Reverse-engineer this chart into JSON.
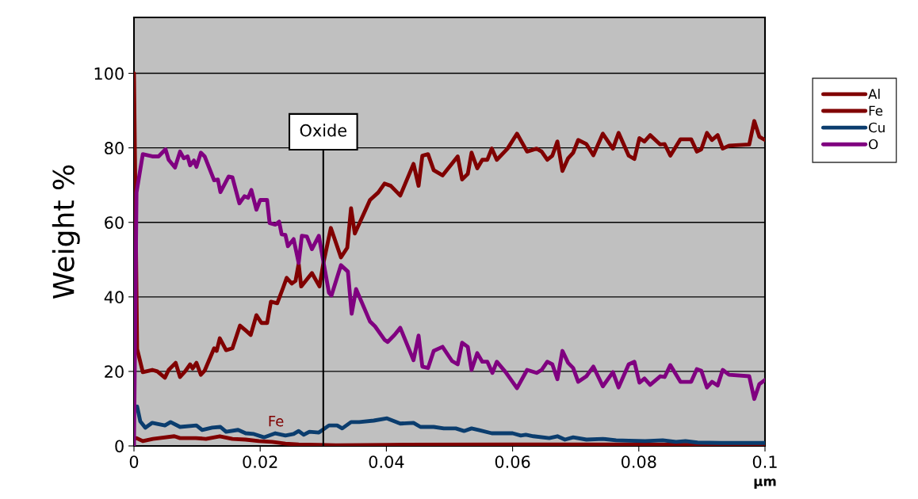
{
  "chart_data": {
    "type": "line",
    "ylabel": "Weight %",
    "xlabel": "µm",
    "xlim": [
      0,
      0.1
    ],
    "xticks": [
      0,
      0.02,
      0.04,
      0.06,
      0.08,
      0.1
    ],
    "ylim": [
      0,
      115
    ],
    "yticks": [
      0,
      20,
      40,
      60,
      80,
      100
    ],
    "grid": "y",
    "legend": "right",
    "marker": "none",
    "line_style": "solid",
    "ref_lines": [
      {
        "axis": "x",
        "value": 0.03,
        "label": "Oxide",
        "color": "#000000"
      }
    ],
    "annotations": [
      "Fe"
    ],
    "series": [
      {
        "name": "Al",
        "color": "#800000",
        "x": [
          0,
          0.0005,
          0.0014,
          0.0029,
          0.0037,
          0.0049,
          0.0055,
          0.0066,
          0.0073,
          0.0081,
          0.0089,
          0.0093,
          0.0099,
          0.0106,
          0.0112,
          0.0127,
          0.0131,
          0.0136,
          0.0146,
          0.0156,
          0.0168,
          0.0177,
          0.0185,
          0.0194,
          0.0202,
          0.0211,
          0.0217,
          0.0227,
          0.0236,
          0.0242,
          0.025,
          0.0256,
          0.0261,
          0.0265,
          0.0282,
          0.0294,
          0.03,
          0.0312,
          0.0328,
          0.0338,
          0.0344,
          0.035,
          0.0374,
          0.0387,
          0.0397,
          0.0407,
          0.0422,
          0.0443,
          0.0451,
          0.0457,
          0.0466,
          0.0475,
          0.0489,
          0.0513,
          0.052,
          0.0529,
          0.0535,
          0.0544,
          0.0552,
          0.056,
          0.0567,
          0.0575,
          0.0592,
          0.0607,
          0.0623,
          0.0638,
          0.0646,
          0.0655,
          0.0663,
          0.0671,
          0.0679,
          0.0688,
          0.0696,
          0.0704,
          0.0717,
          0.0728,
          0.0743,
          0.0759,
          0.0768,
          0.0784,
          0.0793,
          0.0801,
          0.0809,
          0.0818,
          0.0834,
          0.0841,
          0.085,
          0.0866,
          0.0883,
          0.0892,
          0.0899,
          0.0908,
          0.0916,
          0.0925,
          0.0933,
          0.0943,
          0.0975,
          0.0983,
          0.0991,
          0.1
        ],
        "values": [
          100,
          26,
          19.8,
          20.4,
          20,
          18.3,
          20.4,
          22.3,
          18.5,
          20,
          21.9,
          20.8,
          22.3,
          19.1,
          20.2,
          26.2,
          25.5,
          28.9,
          25.7,
          26.2,
          32.3,
          31,
          29.8,
          35.1,
          33,
          33,
          38.7,
          38.3,
          42.3,
          45.1,
          43.6,
          44.3,
          48.9,
          42.8,
          46.4,
          42.8,
          48.9,
          58.5,
          50.6,
          53.2,
          63.8,
          57,
          66,
          68,
          70.4,
          69.8,
          67.2,
          75.7,
          69.8,
          77.9,
          78.3,
          74,
          72.6,
          77.7,
          71.5,
          73,
          78.7,
          74.5,
          76.8,
          76.8,
          79.8,
          76.8,
          79.8,
          83.8,
          79,
          79.8,
          79,
          76.8,
          77.9,
          81.7,
          73.8,
          77.2,
          78.7,
          82.1,
          81,
          78,
          83.8,
          79.8,
          84,
          77.9,
          77,
          82.6,
          81.7,
          83.4,
          80.9,
          81,
          77.9,
          82.3,
          82.3,
          79,
          79.6,
          84,
          82.1,
          83.4,
          79.8,
          80.6,
          80.9,
          87.2,
          83,
          82.1
        ]
      },
      {
        "name": "Fe",
        "color": "#800000",
        "x": [
          0,
          0.0004,
          0.0014,
          0.003,
          0.0064,
          0.0073,
          0.0098,
          0.0114,
          0.0136,
          0.0156,
          0.0177,
          0.0198,
          0.0219,
          0.024,
          0.0261,
          0.0294,
          0.032,
          0.04,
          0.06,
          0.08,
          0.1
        ],
        "values": [
          2,
          2.1,
          1.3,
          1.9,
          2.6,
          2.1,
          2.1,
          1.9,
          2.6,
          1.9,
          1.7,
          1.3,
          1.1,
          0.6,
          0.4,
          0.3,
          0.2,
          0.3,
          0.4,
          0.4,
          0.2
        ]
      },
      {
        "name": "Cu",
        "color": "#0b3d6e",
        "x": [
          0.0005,
          0.001,
          0.0018,
          0.0029,
          0.0049,
          0.0058,
          0.0073,
          0.0099,
          0.0108,
          0.0124,
          0.0137,
          0.0146,
          0.0165,
          0.0177,
          0.019,
          0.0206,
          0.0224,
          0.024,
          0.0253,
          0.0261,
          0.0269,
          0.0278,
          0.0293,
          0.0309,
          0.0322,
          0.033,
          0.0344,
          0.0357,
          0.038,
          0.0401,
          0.0422,
          0.0443,
          0.0454,
          0.0475,
          0.0491,
          0.051,
          0.0523,
          0.0535,
          0.0546,
          0.0567,
          0.06,
          0.0613,
          0.0621,
          0.0633,
          0.0658,
          0.0671,
          0.0683,
          0.0696,
          0.0717,
          0.0743,
          0.0764,
          0.0784,
          0.081,
          0.0838,
          0.0859,
          0.0874,
          0.0893,
          0.093,
          0.095,
          0.1
        ],
        "values": [
          10.6,
          6.6,
          4.9,
          6.2,
          5.5,
          6.4,
          5.1,
          5.5,
          4.3,
          4.9,
          5.1,
          3.8,
          4.3,
          3.4,
          3.2,
          2.3,
          3.4,
          2.8,
          3.2,
          4,
          3,
          3.8,
          3.6,
          5.5,
          5.5,
          4.7,
          6.4,
          6.4,
          6.8,
          7.4,
          6,
          6.2,
          5.1,
          5.1,
          4.7,
          4.7,
          4,
          4.7,
          4.3,
          3.4,
          3.4,
          2.8,
          3,
          2.6,
          2.1,
          2.6,
          1.7,
          2.3,
          1.7,
          1.9,
          1.5,
          1.4,
          1.3,
          1.5,
          1.1,
          1.3,
          0.9,
          0.8,
          0.8,
          0.8
        ]
      },
      {
        "name": "O",
        "color": "#800080",
        "x": [
          0,
          0.0004,
          0.0014,
          0.0029,
          0.0039,
          0.005,
          0.0055,
          0.0065,
          0.0073,
          0.0079,
          0.0085,
          0.0089,
          0.0095,
          0.0099,
          0.0106,
          0.0112,
          0.0127,
          0.0133,
          0.0137,
          0.015,
          0.0156,
          0.0167,
          0.0175,
          0.0181,
          0.0186,
          0.0194,
          0.02,
          0.0211,
          0.0215,
          0.0224,
          0.023,
          0.0234,
          0.024,
          0.0244,
          0.0253,
          0.0261,
          0.0266,
          0.0274,
          0.0282,
          0.0293,
          0.0299,
          0.0309,
          0.0313,
          0.0328,
          0.0339,
          0.0345,
          0.0352,
          0.0374,
          0.0382,
          0.0397,
          0.0402,
          0.0413,
          0.0422,
          0.0443,
          0.0451,
          0.0457,
          0.0466,
          0.0475,
          0.0489,
          0.0504,
          0.0513,
          0.052,
          0.0529,
          0.0535,
          0.0544,
          0.0552,
          0.056,
          0.0568,
          0.0575,
          0.0589,
          0.0607,
          0.0623,
          0.0638,
          0.0646,
          0.0655,
          0.0663,
          0.0671,
          0.0679,
          0.0688,
          0.0696,
          0.0704,
          0.0717,
          0.0728,
          0.0743,
          0.0759,
          0.0768,
          0.0784,
          0.0793,
          0.0801,
          0.0809,
          0.0818,
          0.0834,
          0.0841,
          0.085,
          0.0866,
          0.0883,
          0.0892,
          0.0899,
          0.0908,
          0.0916,
          0.0925,
          0.0933,
          0.0943,
          0.0975,
          0.0983,
          0.0991,
          0.1
        ],
        "values": [
          0,
          68,
          78.3,
          77.7,
          77.7,
          79.6,
          76.8,
          74.7,
          79,
          77.2,
          77.7,
          75.3,
          76.6,
          74.9,
          78.7,
          77.7,
          71.3,
          71.5,
          68.1,
          72.3,
          72.1,
          65.1,
          67,
          66.6,
          68.7,
          63.4,
          66,
          66,
          59.8,
          59.4,
          60.2,
          56.8,
          56.6,
          53.6,
          55.5,
          49.1,
          56.4,
          56.2,
          52.8,
          56.4,
          50.6,
          41.1,
          40.4,
          48.5,
          46.8,
          35.5,
          42.1,
          33.4,
          32.1,
          28.5,
          27.9,
          29.8,
          31.7,
          23,
          29.6,
          21.3,
          20.9,
          25.5,
          26.6,
          22.8,
          21.9,
          27.7,
          26.6,
          20.4,
          24.9,
          22.6,
          22.6,
          19.6,
          22.6,
          19.8,
          15.5,
          20.4,
          19.6,
          20.4,
          22.6,
          21.9,
          17.9,
          25.5,
          22.3,
          20.9,
          17.2,
          18.7,
          21.3,
          16,
          19.8,
          15.7,
          21.9,
          22.6,
          17,
          18.1,
          16.4,
          18.7,
          18.5,
          21.7,
          17.2,
          17.2,
          20.6,
          20.2,
          15.7,
          17.2,
          16.2,
          20.4,
          19.1,
          18.7,
          12.6,
          16.6,
          17.7
        ]
      }
    ]
  }
}
